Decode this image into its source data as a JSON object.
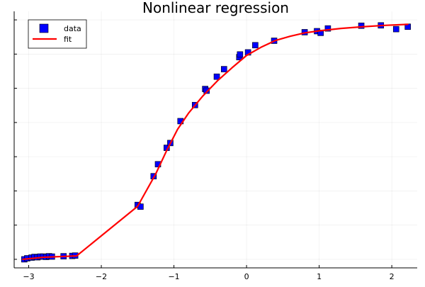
{
  "chart_data": {
    "type": "scatter",
    "title": "Nonlinear regression",
    "xlabel": "",
    "ylabel": "",
    "xlim": [
      -3.2,
      2.35
    ],
    "ylim": [
      -0.25,
      7.25
    ],
    "x_ticks": [
      -3,
      -2,
      -1,
      0,
      1,
      2
    ],
    "x_tick_labels": [
      "−3",
      "−2",
      "−1",
      "0",
      "1",
      "2"
    ],
    "y_ticks": [
      0,
      1,
      2,
      3,
      4,
      5,
      6,
      7
    ],
    "grid": true,
    "legend_position": "top-left",
    "series": [
      {
        "name": "data",
        "kind": "scatter",
        "marker": "square",
        "color": "#0000ff",
        "x": [
          -3.06,
          -3.02,
          -2.96,
          -2.92,
          -2.88,
          -2.84,
          -2.8,
          -2.76,
          -2.72,
          -2.68,
          -2.52,
          -2.4,
          -2.36,
          -1.5,
          -1.46,
          -1.28,
          -1.22,
          -1.1,
          -1.05,
          -0.91,
          -0.71,
          -0.57,
          -0.55,
          -0.41,
          -0.31,
          -0.1,
          -0.09,
          0.02,
          0.12,
          0.38,
          0.8,
          0.97,
          1.02,
          1.12,
          1.58,
          1.85,
          2.06,
          2.22
        ],
        "y": [
          0.0,
          0.03,
          0.05,
          0.07,
          0.06,
          0.08,
          0.08,
          0.07,
          0.09,
          0.08,
          0.09,
          0.1,
          0.11,
          1.59,
          1.54,
          2.43,
          2.78,
          3.26,
          3.4,
          4.04,
          4.51,
          4.98,
          4.93,
          5.34,
          5.56,
          5.91,
          5.99,
          6.05,
          6.26,
          6.39,
          6.64,
          6.67,
          6.62,
          6.75,
          6.83,
          6.84,
          6.73,
          6.8
        ]
      },
      {
        "name": "fit",
        "kind": "line",
        "color": "#ff0000",
        "x": [
          -3.08,
          -2.8,
          -2.34,
          -1.5,
          -1.25,
          -1.1,
          -0.95,
          -0.8,
          -0.6,
          -0.4,
          -0.2,
          0.0,
          0.2,
          0.4,
          0.6,
          0.8,
          1.0,
          1.3,
          1.6,
          1.9,
          2.22
        ],
        "y": [
          0.0,
          0.06,
          0.1,
          1.55,
          2.5,
          3.18,
          3.8,
          4.27,
          4.78,
          5.22,
          5.6,
          5.96,
          6.2,
          6.4,
          6.52,
          6.62,
          6.68,
          6.75,
          6.8,
          6.84,
          6.87
        ]
      }
    ]
  }
}
